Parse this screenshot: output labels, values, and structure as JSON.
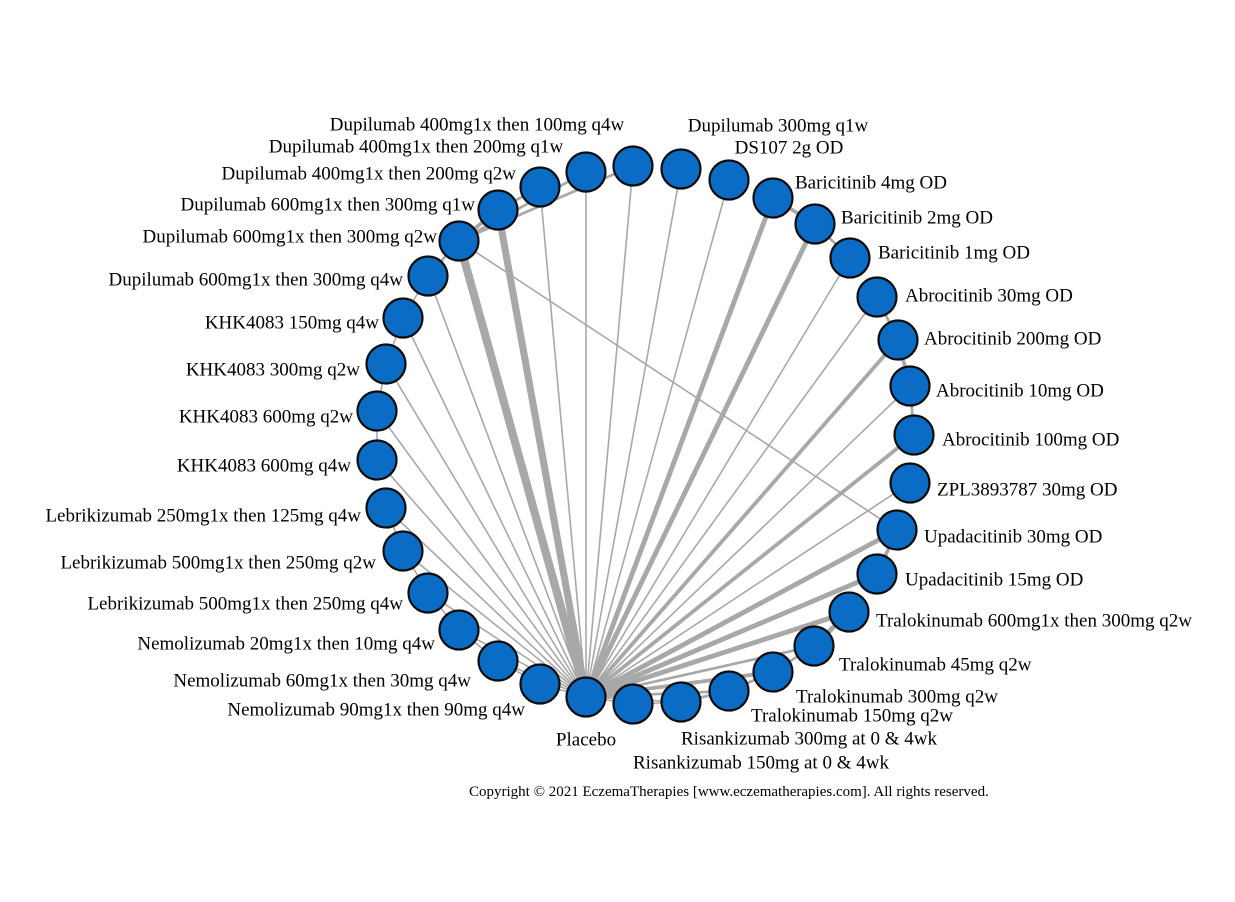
{
  "nodes": [
    {
      "id": "placebo",
      "label": "Placebo"
    },
    {
      "id": "risa150",
      "label": "Risankizumab 150mg at 0 & 4wk"
    },
    {
      "id": "risa300",
      "label": "Risankizumab 300mg at 0 & 4wk"
    },
    {
      "id": "tralo150",
      "label": "Tralokinumab 150mg q2w"
    },
    {
      "id": "tralo300",
      "label": "Tralokinumab 300mg q2w"
    },
    {
      "id": "tralo45",
      "label": "Tralokinumab 45mg q2w"
    },
    {
      "id": "tralo600",
      "label": "Tralokinumab 600mg1x then 300mg q2w"
    },
    {
      "id": "upa15",
      "label": "Upadacitinib 15mg OD"
    },
    {
      "id": "upa30",
      "label": "Upadacitinib 30mg OD"
    },
    {
      "id": "zpl",
      "label": "ZPL3893787 30mg OD"
    },
    {
      "id": "abro100",
      "label": "Abrocitinib 100mg OD"
    },
    {
      "id": "abro10",
      "label": "Abrocitinib 10mg OD"
    },
    {
      "id": "abro200",
      "label": "Abrocitinib 200mg OD"
    },
    {
      "id": "abro30",
      "label": "Abrocitinib 30mg OD"
    },
    {
      "id": "bari1",
      "label": "Baricitinib 1mg OD"
    },
    {
      "id": "bari2",
      "label": "Baricitinib 2mg OD"
    },
    {
      "id": "bari4",
      "label": "Baricitinib 4mg OD"
    },
    {
      "id": "ds107",
      "label": "DS107 2g OD"
    },
    {
      "id": "dupi300q1w",
      "label": "Dupilumab 300mg q1w"
    },
    {
      "id": "dupi400_100q4w",
      "label": "Dupilumab 400mg1x then 100mg q4w"
    },
    {
      "id": "dupi400_200q1w",
      "label": "Dupilumab 400mg1x then 200mg q1w"
    },
    {
      "id": "dupi400_200q2w",
      "label": "Dupilumab 400mg1x then 200mg q2w"
    },
    {
      "id": "dupi600_300q1w",
      "label": "Dupilumab 600mg1x then 300mg q1w"
    },
    {
      "id": "dupi600_300q2w",
      "label": "Dupilumab 600mg1x then 300mg q2w"
    },
    {
      "id": "dupi600_300q4w",
      "label": "Dupilumab 600mg1x then 300mg q4w"
    },
    {
      "id": "khk150q4w",
      "label": "KHK4083 150mg q4w"
    },
    {
      "id": "khk300q2w",
      "label": "KHK4083 300mg q2w"
    },
    {
      "id": "khk600q2w",
      "label": "KHK4083 600mg q2w"
    },
    {
      "id": "khk600q4w",
      "label": "KHK4083 600mg q4w"
    },
    {
      "id": "lebri250",
      "label": "Lebrikizumab 250mg1x then 125mg q4w"
    },
    {
      "id": "lebri500q2w",
      "label": "Lebrikizumab 500mg1x then 250mg q2w"
    },
    {
      "id": "lebri500q4w",
      "label": "Lebrikizumab 500mg1x then 250mg q4w"
    },
    {
      "id": "nemo20",
      "label": "Nemolizumab 20mg1x then 10mg q4w"
    },
    {
      "id": "nemo60",
      "label": "Nemolizumab 60mg1x then 30mg q4w"
    },
    {
      "id": "nemo90",
      "label": "Nemolizumab 90mg1x then 90mg q4w"
    }
  ],
  "edges": [
    {
      "from": "placebo",
      "to": "risa150",
      "weight": 1
    },
    {
      "from": "placebo",
      "to": "risa300",
      "weight": 1
    },
    {
      "from": "placebo",
      "to": "tralo150",
      "weight": 2
    },
    {
      "from": "placebo",
      "to": "tralo300",
      "weight": 3
    },
    {
      "from": "placebo",
      "to": "tralo45",
      "weight": 2
    },
    {
      "from": "placebo",
      "to": "tralo600",
      "weight": 4
    },
    {
      "from": "placebo",
      "to": "upa15",
      "weight": 4
    },
    {
      "from": "placebo",
      "to": "upa30",
      "weight": 4
    },
    {
      "from": "placebo",
      "to": "zpl",
      "weight": 1
    },
    {
      "from": "placebo",
      "to": "abro100",
      "weight": 3
    },
    {
      "from": "placebo",
      "to": "abro10",
      "weight": 1
    },
    {
      "from": "placebo",
      "to": "abro200",
      "weight": 3
    },
    {
      "from": "placebo",
      "to": "abro30",
      "weight": 1
    },
    {
      "from": "placebo",
      "to": "bari1",
      "weight": 1
    },
    {
      "from": "placebo",
      "to": "bari2",
      "weight": 4
    },
    {
      "from": "placebo",
      "to": "bari4",
      "weight": 4
    },
    {
      "from": "placebo",
      "to": "ds107",
      "weight": 1
    },
    {
      "from": "placebo",
      "to": "dupi300q1w",
      "weight": 1
    },
    {
      "from": "placebo",
      "to": "dupi400_100q4w",
      "weight": 1
    },
    {
      "from": "placebo",
      "to": "dupi400_200q1w",
      "weight": 1
    },
    {
      "from": "placebo",
      "to": "dupi400_200q2w",
      "weight": 1
    },
    {
      "from": "placebo",
      "to": "dupi600_300q1w",
      "weight": 6
    },
    {
      "from": "placebo",
      "to": "dupi600_300q2w",
      "weight": 7
    },
    {
      "from": "placebo",
      "to": "dupi600_300q4w",
      "weight": 1
    },
    {
      "from": "placebo",
      "to": "khk150q4w",
      "weight": 1
    },
    {
      "from": "placebo",
      "to": "khk300q2w",
      "weight": 1
    },
    {
      "from": "placebo",
      "to": "khk600q2w",
      "weight": 1
    },
    {
      "from": "placebo",
      "to": "khk600q4w",
      "weight": 1
    },
    {
      "from": "placebo",
      "to": "lebri250",
      "weight": 1
    },
    {
      "from": "placebo",
      "to": "lebri500q2w",
      "weight": 1
    },
    {
      "from": "placebo",
      "to": "lebri500q4w",
      "weight": 1
    },
    {
      "from": "placebo",
      "to": "nemo20",
      "weight": 1
    },
    {
      "from": "placebo",
      "to": "nemo60",
      "weight": 1
    },
    {
      "from": "placebo",
      "to": "nemo90",
      "weight": 1
    },
    {
      "from": "dupi600_300q2w",
      "to": "upa30",
      "weight": 1
    },
    {
      "from": "dupi600_300q2w",
      "to": "dupi400_100q4w",
      "weight": 2
    },
    {
      "from": "dupi600_300q2w",
      "to": "dupi400_200q1w",
      "weight": 2
    },
    {
      "from": "dupi600_300q1w",
      "to": "dupi400_200q2w",
      "weight": 2
    },
    {
      "from": "dupi600_300q1w",
      "to": "dupi600_300q2w",
      "weight": 3
    },
    {
      "from": "dupi600_300q2w",
      "to": "dupi600_300q4w",
      "weight": 2
    },
    {
      "from": "dupi600_300q4w",
      "to": "khk150q4w",
      "weight": 1
    },
    {
      "from": "khk150q4w",
      "to": "khk300q2w",
      "weight": 1
    },
    {
      "from": "khk300q2w",
      "to": "khk600q2w",
      "weight": 1
    },
    {
      "from": "khk600q2w",
      "to": "khk600q4w",
      "weight": 1
    },
    {
      "from": "lebri250",
      "to": "lebri500q2w",
      "weight": 1
    },
    {
      "from": "lebri500q2w",
      "to": "lebri500q4w",
      "weight": 1
    },
    {
      "from": "lebri500q4w",
      "to": "nemo20",
      "weight": 1
    },
    {
      "from": "nemo20",
      "to": "nemo60",
      "weight": 1
    },
    {
      "from": "nemo60",
      "to": "nemo90",
      "weight": 1
    },
    {
      "from": "risa150",
      "to": "risa300",
      "weight": 1
    },
    {
      "from": "risa300",
      "to": "tralo150",
      "weight": 2
    },
    {
      "from": "tralo150",
      "to": "tralo300",
      "weight": 2
    },
    {
      "from": "tralo300",
      "to": "tralo45",
      "weight": 2
    },
    {
      "from": "tralo45",
      "to": "tralo600",
      "weight": 4
    },
    {
      "from": "upa15",
      "to": "upa30",
      "weight": 3
    },
    {
      "from": "abro100",
      "to": "abro10",
      "weight": 2
    },
    {
      "from": "abro10",
      "to": "abro200",
      "weight": 3
    },
    {
      "from": "abro200",
      "to": "abro30",
      "weight": 2
    },
    {
      "from": "bari1",
      "to": "bari2",
      "weight": 2
    },
    {
      "from": "bari2",
      "to": "bari4",
      "weight": 3
    }
  ],
  "colors": {
    "node_fill": "#0a6cc4",
    "node_stroke": "#0d0d0d",
    "edge": "#a8a8a8",
    "text": "#000000"
  },
  "footer": {
    "copyright": "Copyright © 2021 EczemaTherapies [www.eczematherapies.com]. All rights reserved."
  }
}
